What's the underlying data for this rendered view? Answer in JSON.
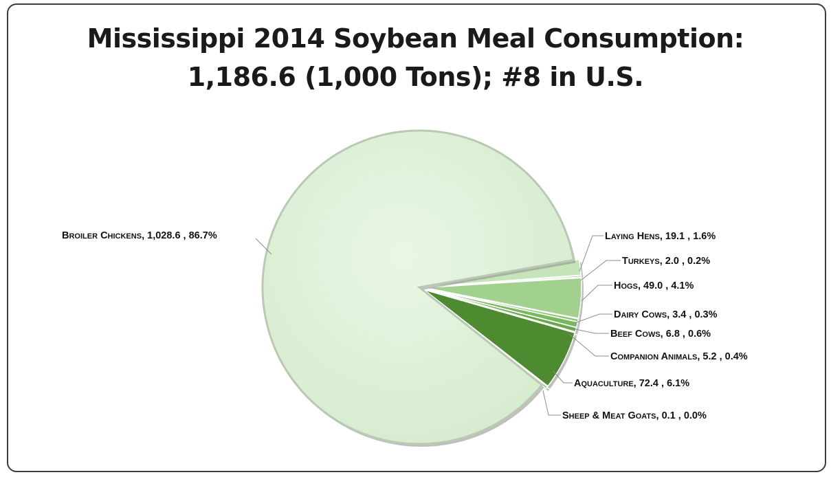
{
  "chart_data": {
    "type": "pie",
    "title_lines": [
      "Mississippi 2014 Soybean Meal Consumption:",
      "1,186.6 (1,000 Tons); #8 in U.S."
    ],
    "slices": [
      {
        "key": "broiler",
        "label": "Broiler Chickens",
        "value": 1028.6,
        "value_text": "1,028.6",
        "percent_text": "86.7%",
        "color": "#dcefd6"
      },
      {
        "key": "laying",
        "label": "Laying Hens",
        "value": 19.1,
        "value_text": "19.1",
        "percent_text": "1.6%",
        "color": "#c5e4ba"
      },
      {
        "key": "turkeys",
        "label": "Turkeys",
        "value": 2.0,
        "value_text": "2.0",
        "percent_text": "0.2%",
        "color": "#b7dca9"
      },
      {
        "key": "hogs",
        "label": "Hogs",
        "value": 49.0,
        "value_text": "49.0",
        "percent_text": "4.1%",
        "color": "#a2d08f"
      },
      {
        "key": "dairy",
        "label": "Dairy Cows",
        "value": 3.4,
        "value_text": "3.4",
        "percent_text": "0.3%",
        "color": "#8cc474"
      },
      {
        "key": "beef",
        "label": "Beef Cows",
        "value": 6.8,
        "value_text": "6.8",
        "percent_text": "0.6%",
        "color": "#78b85e"
      },
      {
        "key": "companion",
        "label": "Companion Animals",
        "value": 5.2,
        "value_text": "5.2",
        "percent_text": "0.4%",
        "color": "#66a84a"
      },
      {
        "key": "aquaculture",
        "label": "Aquaculture",
        "value": 72.4,
        "value_text": "72.4",
        "percent_text": "6.1%",
        "color": "#4e8a30"
      },
      {
        "key": "sheep",
        "label": "Sheep & Meat Goats",
        "value": 0.1,
        "value_text": "0.1",
        "percent_text": "0.0%",
        "color": "#3f7424"
      }
    ]
  }
}
